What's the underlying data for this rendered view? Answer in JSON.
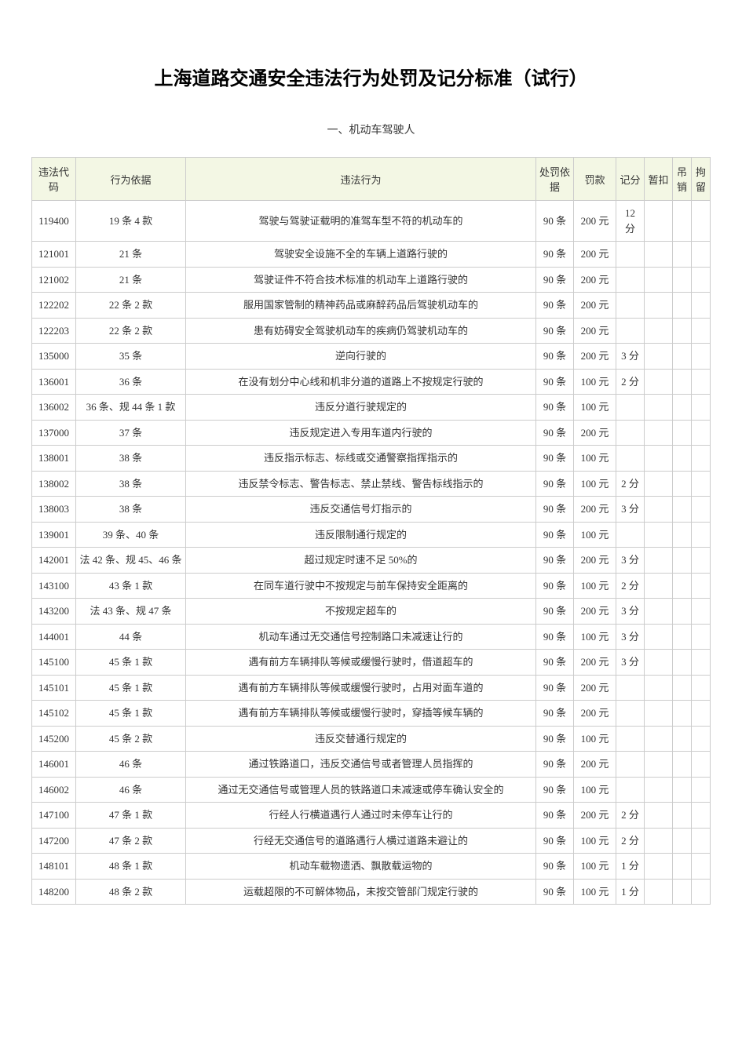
{
  "title": "上海道路交通安全违法行为处罚及记分标准（试行）",
  "subtitle": "一、机动车驾驶人",
  "table": {
    "headers": {
      "code": "违法代码",
      "basis": "行为依据",
      "behavior": "违法行为",
      "penalty_basis": "处罚依据",
      "fine": "罚款",
      "points": "记分",
      "suspend": "暂扣",
      "revoke": "吊销",
      "detain": "拘留"
    },
    "header_bg": "#f3f7e4",
    "border_color": "#cccccc",
    "text_color": "#333333",
    "rows": [
      {
        "code": "119400",
        "basis": "19 条 4 款",
        "behavior": "驾驶与驾驶证载明的准驾车型不符的机动车的",
        "penalty_basis": "90 条",
        "fine": "200 元",
        "points": "12 分",
        "suspend": "",
        "revoke": "",
        "detain": ""
      },
      {
        "code": "121001",
        "basis": "21 条",
        "behavior": "驾驶安全设施不全的车辆上道路行驶的",
        "penalty_basis": "90 条",
        "fine": "200 元",
        "points": "",
        "suspend": "",
        "revoke": "",
        "detain": ""
      },
      {
        "code": "121002",
        "basis": "21 条",
        "behavior": "驾驶证件不符合技术标准的机动车上道路行驶的",
        "penalty_basis": "90 条",
        "fine": "200 元",
        "points": "",
        "suspend": "",
        "revoke": "",
        "detain": ""
      },
      {
        "code": "122202",
        "basis": "22 条 2 款",
        "behavior": "服用国家管制的精神药品或麻醉药品后驾驶机动车的",
        "penalty_basis": "90 条",
        "fine": "200 元",
        "points": "",
        "suspend": "",
        "revoke": "",
        "detain": ""
      },
      {
        "code": "122203",
        "basis": "22 条 2 款",
        "behavior": "患有妨碍安全驾驶机动车的疾病仍驾驶机动车的",
        "penalty_basis": "90 条",
        "fine": "200 元",
        "points": "",
        "suspend": "",
        "revoke": "",
        "detain": ""
      },
      {
        "code": "135000",
        "basis": "35 条",
        "behavior": "逆向行驶的",
        "penalty_basis": "90 条",
        "fine": "200 元",
        "points": "3 分",
        "suspend": "",
        "revoke": "",
        "detain": ""
      },
      {
        "code": "136001",
        "basis": "36 条",
        "behavior": "在没有划分中心线和机非分道的道路上不按规定行驶的",
        "penalty_basis": "90 条",
        "fine": "100 元",
        "points": "2 分",
        "suspend": "",
        "revoke": "",
        "detain": ""
      },
      {
        "code": "136002",
        "basis": "36 条、规 44 条 1 款",
        "behavior": "违反分道行驶规定的",
        "penalty_basis": "90 条",
        "fine": "100 元",
        "points": "",
        "suspend": "",
        "revoke": "",
        "detain": ""
      },
      {
        "code": "137000",
        "basis": "37 条",
        "behavior": "违反规定进入专用车道内行驶的",
        "penalty_basis": "90 条",
        "fine": "200 元",
        "points": "",
        "suspend": "",
        "revoke": "",
        "detain": ""
      },
      {
        "code": "138001",
        "basis": "38 条",
        "behavior": "违反指示标志、标线或交通警察指挥指示的",
        "penalty_basis": "90 条",
        "fine": "100 元",
        "points": "",
        "suspend": "",
        "revoke": "",
        "detain": ""
      },
      {
        "code": "138002",
        "basis": "38 条",
        "behavior": "违反禁令标志、警告标志、禁止禁线、警告标线指示的",
        "penalty_basis": "90 条",
        "fine": "100 元",
        "points": "2 分",
        "suspend": "",
        "revoke": "",
        "detain": ""
      },
      {
        "code": "138003",
        "basis": "38 条",
        "behavior": "违反交通信号灯指示的",
        "penalty_basis": "90 条",
        "fine": "200 元",
        "points": "3 分",
        "suspend": "",
        "revoke": "",
        "detain": ""
      },
      {
        "code": "139001",
        "basis": "39 条、40 条",
        "behavior": "违反限制通行规定的",
        "penalty_basis": "90 条",
        "fine": "100 元",
        "points": "",
        "suspend": "",
        "revoke": "",
        "detain": ""
      },
      {
        "code": "142001",
        "basis": "法 42 条、规 45、46 条",
        "behavior": "超过规定时速不足 50%的",
        "penalty_basis": "90 条",
        "fine": "200 元",
        "points": "3 分",
        "suspend": "",
        "revoke": "",
        "detain": ""
      },
      {
        "code": "143100",
        "basis": "43 条 1 款",
        "behavior": "在同车道行驶中不按规定与前车保持安全距离的",
        "penalty_basis": "90 条",
        "fine": "100 元",
        "points": "2 分",
        "suspend": "",
        "revoke": "",
        "detain": ""
      },
      {
        "code": "143200",
        "basis": "法 43 条、规 47 条",
        "behavior": "不按规定超车的",
        "penalty_basis": "90 条",
        "fine": "200 元",
        "points": "3 分",
        "suspend": "",
        "revoke": "",
        "detain": ""
      },
      {
        "code": "144001",
        "basis": "44 条",
        "behavior": "机动车通过无交通信号控制路口未减速让行的",
        "penalty_basis": "90 条",
        "fine": "100 元",
        "points": "3 分",
        "suspend": "",
        "revoke": "",
        "detain": ""
      },
      {
        "code": "145100",
        "basis": "45 条 1 款",
        "behavior": "遇有前方车辆排队等候或缓慢行驶时，借道超车的",
        "penalty_basis": "90 条",
        "fine": "200 元",
        "points": "3 分",
        "suspend": "",
        "revoke": "",
        "detain": ""
      },
      {
        "code": "145101",
        "basis": "45 条 1 款",
        "behavior": "遇有前方车辆排队等候或缓慢行驶时，占用对面车道的",
        "penalty_basis": "90 条",
        "fine": "200 元",
        "points": "",
        "suspend": "",
        "revoke": "",
        "detain": ""
      },
      {
        "code": "145102",
        "basis": "45 条 1 款",
        "behavior": "遇有前方车辆排队等候或缓慢行驶时，穿插等候车辆的",
        "penalty_basis": "90 条",
        "fine": "200 元",
        "points": "",
        "suspend": "",
        "revoke": "",
        "detain": ""
      },
      {
        "code": "145200",
        "basis": "45 条 2 款",
        "behavior": "违反交替通行规定的",
        "penalty_basis": "90 条",
        "fine": "100 元",
        "points": "",
        "suspend": "",
        "revoke": "",
        "detain": ""
      },
      {
        "code": "146001",
        "basis": "46 条",
        "behavior": "通过铁路道口，违反交通信号或者管理人员指挥的",
        "penalty_basis": "90 条",
        "fine": "200 元",
        "points": "",
        "suspend": "",
        "revoke": "",
        "detain": ""
      },
      {
        "code": "146002",
        "basis": "46 条",
        "behavior": "通过无交通信号或管理人员的铁路道口未减速或停车确认安全的",
        "penalty_basis": "90 条",
        "fine": "100 元",
        "points": "",
        "suspend": "",
        "revoke": "",
        "detain": ""
      },
      {
        "code": "147100",
        "basis": "47 条 1 款",
        "behavior": "行经人行横道遇行人通过时未停车让行的",
        "penalty_basis": "90 条",
        "fine": "200 元",
        "points": "2 分",
        "suspend": "",
        "revoke": "",
        "detain": ""
      },
      {
        "code": "147200",
        "basis": "47 条 2 款",
        "behavior": "行经无交通信号的道路遇行人横过道路未避让的",
        "penalty_basis": "90 条",
        "fine": "100 元",
        "points": "2 分",
        "suspend": "",
        "revoke": "",
        "detain": ""
      },
      {
        "code": "148101",
        "basis": "48 条 1 款",
        "behavior": "机动车载物遗洒、飘散载运物的",
        "penalty_basis": "90 条",
        "fine": "100 元",
        "points": "1 分",
        "suspend": "",
        "revoke": "",
        "detain": ""
      },
      {
        "code": "148200",
        "basis": "48 条 2 款",
        "behavior": "运载超限的不可解体物品，未按交管部门规定行驶的",
        "penalty_basis": "90 条",
        "fine": "100 元",
        "points": "1 分",
        "suspend": "",
        "revoke": "",
        "detain": ""
      }
    ]
  }
}
